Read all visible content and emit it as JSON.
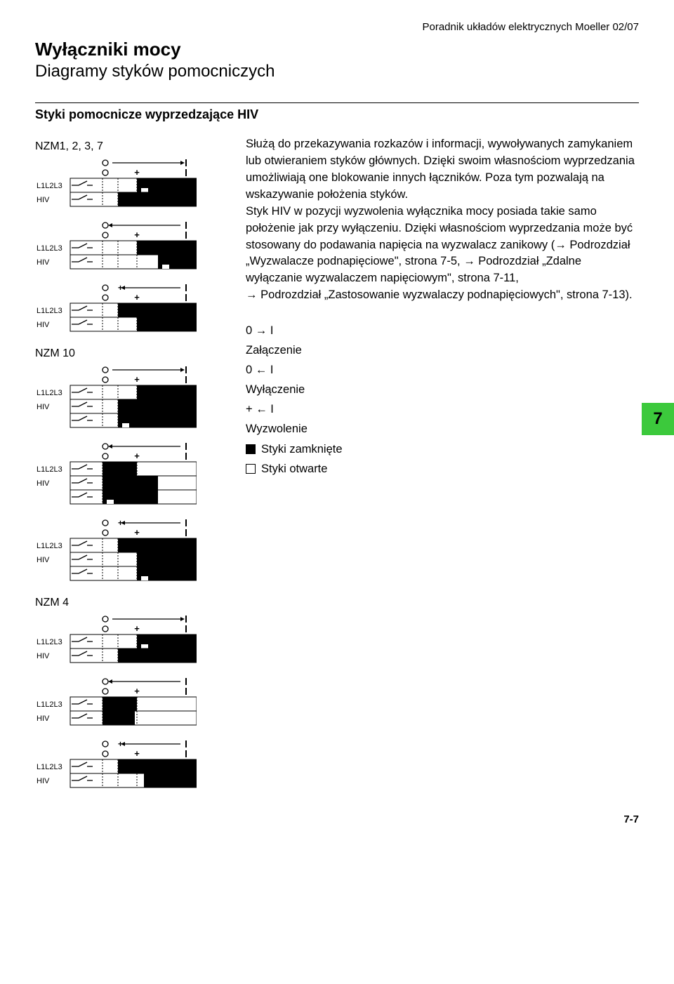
{
  "header": {
    "guide": "Poradnik układów elektrycznych Moeller 02/07",
    "title_bold": "Wyłączniki mocy",
    "title_light": "Diagramy styków pomocniczych",
    "section": "Styki pomocnicze wyprzedzające HIV"
  },
  "groups": {
    "g1": "NZM1, 2, 3, 7",
    "g2": "NZM 10",
    "g3": "NZM 4"
  },
  "body": {
    "p1a": "Służą do przekazywania rozkazów i informacji, wywoływanych zamykaniem lub otwieraniem styków głównych. Dzięki swoim własnościom wyprzedzania umożliwiają one blokowanie innych łączników. Poza tym pozwalają na wskazywanie położenia styków.",
    "p1b": "Styk HIV w pozycji wyzwolenia wyłącznika mocy posiada takie samo położenie jak przy wyłączeniu. Dzięki własnościom wyprzedzania może być stosowany do podawania napięcia na wyzwalacz zanikowy (",
    "p1c": " Podrozdział „Wyzwalacze podnapięciowe\", strona 7-5, ",
    "p1d": " Podrozdział „Zdalne wyłączanie wyzwalaczem napięciowym\", strona 7-11, ",
    "p1e": " Podrozdział „Zastosowanie wyzwalaczy podnapięciowych\", strona 7-13)."
  },
  "legend": {
    "l1a": "0 → I",
    "l1b": "Załączenie",
    "l2a": "0 ← I",
    "l2b": "Wyłączenie",
    "l3a": "+ ← I",
    "l3b": "Wyzwolenie",
    "l4": "Styki zamknięte",
    "l5": "Styki otwarte"
  },
  "tab": "7",
  "page": "7-7",
  "diagram_colors": {
    "stroke": "#000000",
    "fill_closed": "#000000",
    "fill_open": "#ffffff"
  },
  "row_labels": {
    "main": "L1L2L3",
    "aux": "HIV"
  },
  "diagrams": [
    {
      "group": "g1",
      "header": "arrow_right",
      "rows": 2,
      "pattern": "A"
    },
    {
      "group": "g1",
      "header": "arrow_left",
      "rows": 2,
      "pattern": "B"
    },
    {
      "group": "g1",
      "header": "plus_left",
      "rows": 2,
      "pattern": "C"
    },
    {
      "group": "g2",
      "header": "arrow_right",
      "rows": 3,
      "pattern": "D"
    },
    {
      "group": "g2",
      "header": "arrow_left",
      "rows": 3,
      "pattern": "E"
    },
    {
      "group": "g2",
      "header": "plus_left",
      "rows": 3,
      "pattern": "F"
    },
    {
      "group": "g3",
      "header": "arrow_right",
      "rows": 2,
      "pattern": "A"
    },
    {
      "group": "g3",
      "header": "arrow_left",
      "rows": 2,
      "pattern": "B2"
    },
    {
      "group": "g3",
      "header": "plus_left",
      "rows": 2,
      "pattern": "C2"
    }
  ]
}
